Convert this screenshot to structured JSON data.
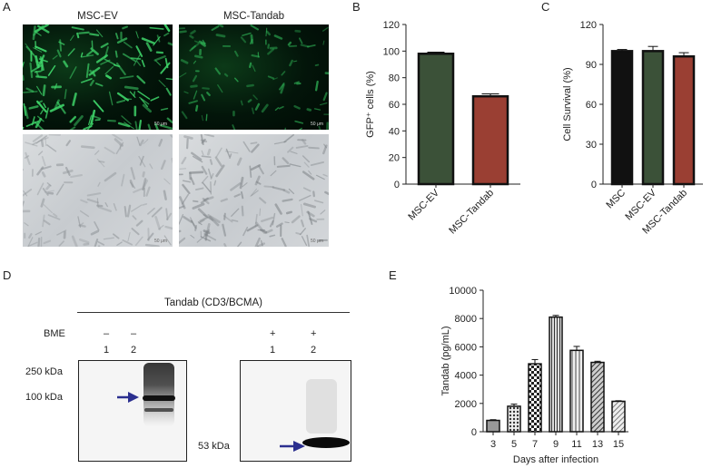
{
  "panels": {
    "a": "A",
    "b": "B",
    "c": "C",
    "d": "D",
    "e": "E"
  },
  "panel_a": {
    "col1_title": "MSC-EV",
    "col2_title": "MSC-Tandab",
    "scale_label": "50 μm"
  },
  "panel_d": {
    "title": "Tandab (CD3/BCMA)",
    "bme_label": "BME",
    "lanes": [
      {
        "sign": "–",
        "num": "1"
      },
      {
        "sign": "–",
        "num": "2"
      },
      {
        "sign": "+",
        "num": "1"
      },
      {
        "sign": "+",
        "num": "2"
      }
    ],
    "markers": [
      "250 kDa",
      "100 kDa",
      "53 kDa"
    ],
    "arrow_color": "#2b2f8f"
  },
  "chart_data": [
    {
      "type": "bar",
      "panel": "B",
      "categories": [
        "MSC-EV",
        "MSC-Tandab"
      ],
      "values": [
        98,
        66
      ],
      "errors": [
        1.2,
        1.8
      ],
      "ylabel": "GFP⁺ cells (%)",
      "ylim": [
        0,
        120
      ],
      "yticks": [
        0,
        20,
        40,
        60,
        80,
        100,
        120
      ],
      "colors": [
        "#3b5138",
        "#9a3f33"
      ]
    },
    {
      "type": "bar",
      "panel": "C",
      "categories": [
        "MSC",
        "MSC-EV",
        "MSC-Tandab"
      ],
      "values": [
        100,
        100,
        96
      ],
      "errors": [
        1.2,
        3.5,
        2.8
      ],
      "ylabel": "Cell Survival (%)",
      "ylim": [
        0,
        120
      ],
      "yticks": [
        0,
        30,
        60,
        90,
        120
      ],
      "colors": [
        "#111111",
        "#3b5138",
        "#9a3f33"
      ]
    },
    {
      "type": "bar",
      "panel": "E",
      "categories": [
        "3",
        "5",
        "7",
        "9",
        "11",
        "13",
        "15"
      ],
      "values": [
        800,
        1800,
        4800,
        8100,
        5750,
        4900,
        2150
      ],
      "errors": [
        50,
        150,
        300,
        120,
        280,
        80,
        40
      ],
      "xlabel": "Days after infection",
      "ylabel": "Tandab (pg/mL)",
      "ylim": [
        0,
        10000
      ],
      "yticks": [
        0,
        2000,
        4000,
        6000,
        8000,
        10000
      ],
      "patterns": [
        "grey",
        "dots",
        "checker",
        "vlines",
        "vlines-light",
        "diag",
        "diag-light"
      ]
    }
  ]
}
